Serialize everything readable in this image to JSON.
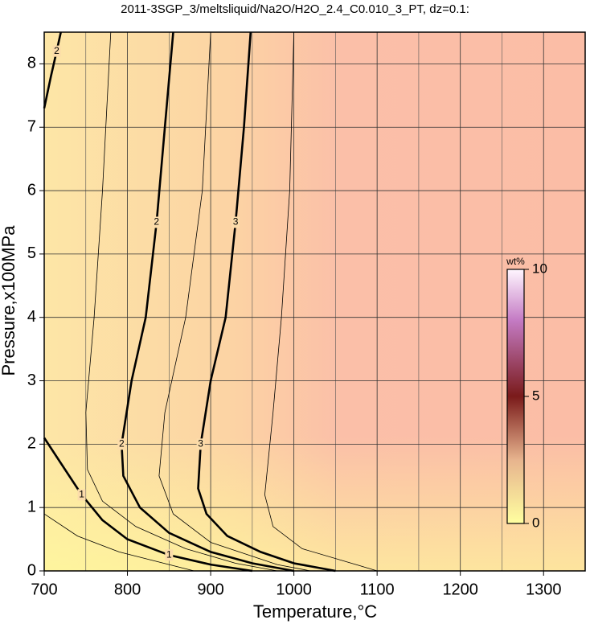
{
  "chart_data": {
    "type": "contour",
    "title": "2011-3SGP_3/meltsliquid/Na2O/H2O_2.4_C0.010_3_PT, dz=0.1:",
    "x_label": "Temperature,°C",
    "y_label": "Pressure,x100MPa",
    "xlim": [
      700,
      1350
    ],
    "ylim": [
      0,
      8.5
    ],
    "xticks": [
      700,
      800,
      900,
      1000,
      1100,
      1200,
      1300
    ],
    "xminor": [
      750,
      850,
      950,
      1050,
      1150,
      1250,
      1350
    ],
    "yticks": [
      0,
      1,
      2,
      3,
      4,
      5,
      6,
      7,
      8
    ],
    "grid": true,
    "contours": [
      {
        "level": 1,
        "bold": true,
        "x": [
          700,
          720,
          745,
          770,
          800,
          850,
          900,
          950
        ],
        "y": [
          2.1,
          1.7,
          1.2,
          0.8,
          0.5,
          0.25,
          0.1,
          0
        ]
      },
      {
        "level": 2,
        "bold": true,
        "x": [
          855,
          845,
          835,
          822,
          805,
          793,
          795,
          815,
          850,
          900,
          950,
          1000
        ],
        "y": [
          8.5,
          7,
          5.5,
          4,
          3,
          2,
          1.5,
          1.0,
          0.6,
          0.3,
          0.12,
          0
        ]
      },
      {
        "level": 2,
        "bold": true,
        "x": [
          700,
          708,
          715,
          720
        ],
        "y": [
          7.3,
          7.8,
          8.2,
          8.5
        ]
      },
      {
        "level": 3,
        "bold": true,
        "x": [
          948,
          940,
          930,
          918,
          900,
          888,
          885,
          895,
          920,
          960,
          1000,
          1050
        ],
        "y": [
          8.5,
          7,
          5.5,
          4,
          3,
          2,
          1.3,
          0.9,
          0.55,
          0.3,
          0.12,
          0
        ]
      },
      {
        "level": 0.5,
        "bold": false,
        "x": [
          700,
          740,
          790,
          850,
          880
        ],
        "y": [
          0.9,
          0.55,
          0.3,
          0.1,
          0
        ]
      },
      {
        "level": 1.5,
        "bold": false,
        "x": [
          780,
          770,
          760,
          750,
          752,
          770,
          810,
          870,
          930,
          980
        ],
        "y": [
          8.5,
          6,
          4,
          2.5,
          1.6,
          1.1,
          0.7,
          0.35,
          0.12,
          0
        ]
      },
      {
        "level": 2.5,
        "bold": false,
        "x": [
          900,
          890,
          870,
          845,
          838,
          855,
          900,
          980,
          1020
        ],
        "y": [
          8.5,
          6,
          4,
          2.5,
          1.5,
          0.9,
          0.45,
          0.1,
          0
        ]
      },
      {
        "level": 3.5,
        "bold": false,
        "x": [
          1000,
          995,
          985,
          975,
          965,
          975,
          1010,
          1080,
          1100
        ],
        "y": [
          8.5,
          6,
          4,
          2.5,
          1.2,
          0.7,
          0.35,
          0.08,
          0
        ]
      }
    ],
    "colorbar": {
      "label": "wt%",
      "lim": [
        0,
        10
      ],
      "ticks": [
        0,
        5,
        10
      ]
    }
  }
}
